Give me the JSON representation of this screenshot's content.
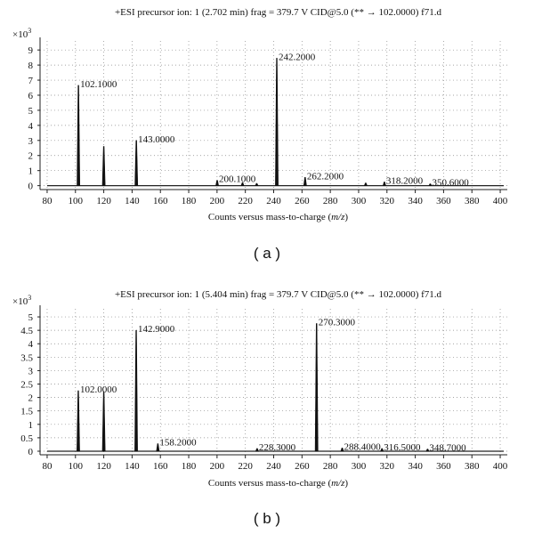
{
  "chart_data": [
    {
      "type": "line",
      "panel_label": "( a )",
      "title": "+ESI precursor ion: 1 (2.702 min) frag = 379.7 V CID@5.0 (** → 102.0000) f71.d",
      "multiplier": "×10",
      "multiplier_exp": "3",
      "xlabel_prefix": "Counts versus mass-to-charge (",
      "xlabel_unit": "m/z",
      "xlabel_suffix": ")",
      "xlim": [
        75,
        405
      ],
      "ylim": [
        -0.2,
        9.6
      ],
      "x_ticks": [
        80,
        100,
        120,
        140,
        160,
        180,
        200,
        220,
        240,
        260,
        280,
        300,
        320,
        340,
        360,
        380,
        400
      ],
      "y_ticks": [
        0,
        1,
        2,
        3,
        4,
        5,
        6,
        7,
        8,
        9
      ],
      "grid": true,
      "peaks": [
        {
          "x": 102.1,
          "y": 6.65,
          "label": "102.1000"
        },
        {
          "x": 120.0,
          "y": 2.6,
          "label": ""
        },
        {
          "x": 143.0,
          "y": 3.0,
          "label": "143.0000"
        },
        {
          "x": 200.1,
          "y": 0.35,
          "label": "200.1000"
        },
        {
          "x": 218.0,
          "y": 0.2,
          "label": ""
        },
        {
          "x": 228.0,
          "y": 0.15,
          "label": ""
        },
        {
          "x": 242.2,
          "y": 8.45,
          "label": "242.2000"
        },
        {
          "x": 262.2,
          "y": 0.55,
          "label": "262.2000"
        },
        {
          "x": 305.0,
          "y": 0.18,
          "label": ""
        },
        {
          "x": 318.2,
          "y": 0.25,
          "label": "318.2000"
        },
        {
          "x": 350.6,
          "y": 0.12,
          "label": "350.6000"
        }
      ]
    },
    {
      "type": "line",
      "panel_label": "( b )",
      "title": "+ESI precursor ion: 1 (5.404 min) frag = 379.7 V CID@5.0 (** → 102.0000) f71.d",
      "multiplier": "×10",
      "multiplier_exp": "3",
      "xlabel_prefix": "Counts versus mass-to-charge (",
      "xlabel_unit": "m/z",
      "xlabel_suffix": ")",
      "xlim": [
        75,
        405
      ],
      "ylim": [
        -0.1,
        5.3
      ],
      "x_ticks": [
        80,
        100,
        120,
        140,
        160,
        180,
        200,
        220,
        240,
        260,
        280,
        300,
        320,
        340,
        360,
        380,
        400
      ],
      "y_ticks": [
        0,
        0.5,
        1,
        1.5,
        2,
        2.5,
        3,
        3.5,
        4,
        4.5,
        5
      ],
      "grid": true,
      "peaks": [
        {
          "x": 102.0,
          "y": 2.25,
          "label": "102.0000"
        },
        {
          "x": 120.0,
          "y": 2.2,
          "label": ""
        },
        {
          "x": 142.9,
          "y": 4.5,
          "label": "142.9000"
        },
        {
          "x": 158.2,
          "y": 0.28,
          "label": "158.2000"
        },
        {
          "x": 228.3,
          "y": 0.1,
          "label": "228.3000"
        },
        {
          "x": 270.3,
          "y": 4.75,
          "label": "270.3000"
        },
        {
          "x": 288.4,
          "y": 0.12,
          "label": "288.4000"
        },
        {
          "x": 316.5,
          "y": 0.1,
          "label": "316.5000"
        },
        {
          "x": 348.7,
          "y": 0.08,
          "label": "348.7000"
        }
      ]
    }
  ]
}
